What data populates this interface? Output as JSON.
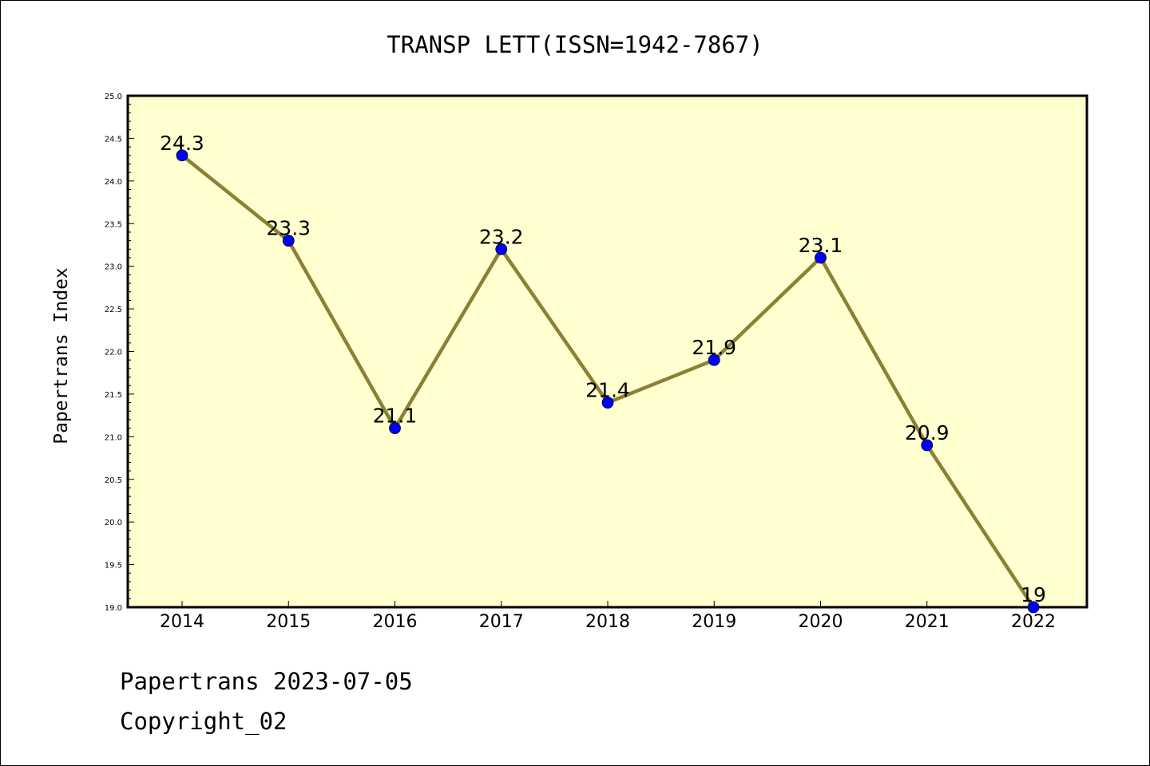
{
  "chart_data": {
    "type": "line",
    "title": "TRANSP LETT(ISSN=1942-7867)",
    "xlabel": "",
    "ylabel": "Papertrans Index",
    "categories": [
      "2014",
      "2015",
      "2016",
      "2017",
      "2018",
      "2019",
      "2020",
      "2021",
      "2022"
    ],
    "series": [
      {
        "values": [
          24.3,
          23.3,
          21.1,
          23.2,
          21.4,
          21.9,
          23.1,
          20.9,
          19
        ]
      }
    ],
    "data_labels": [
      "24.3",
      "23.3",
      "21.1",
      "23.2",
      "21.4",
      "21.9",
      "23.1",
      "20.9",
      "19"
    ],
    "ylim": [
      19.0,
      25.0
    ],
    "yticks": [
      "19.0",
      "19.5",
      "20.0",
      "20.5",
      "21.0",
      "21.5",
      "22.0",
      "22.5",
      "23.0",
      "23.5",
      "24.0",
      "24.5",
      "25.0"
    ],
    "grid": false,
    "legend": "none"
  },
  "footer": {
    "line1": "Papertrans 2023-07-05",
    "line2": "Copyright_02"
  },
  "colors": {
    "plot_background": "#ffffd0",
    "line": "#8b8035",
    "marker": "#0000ff",
    "axis": "#000000"
  }
}
